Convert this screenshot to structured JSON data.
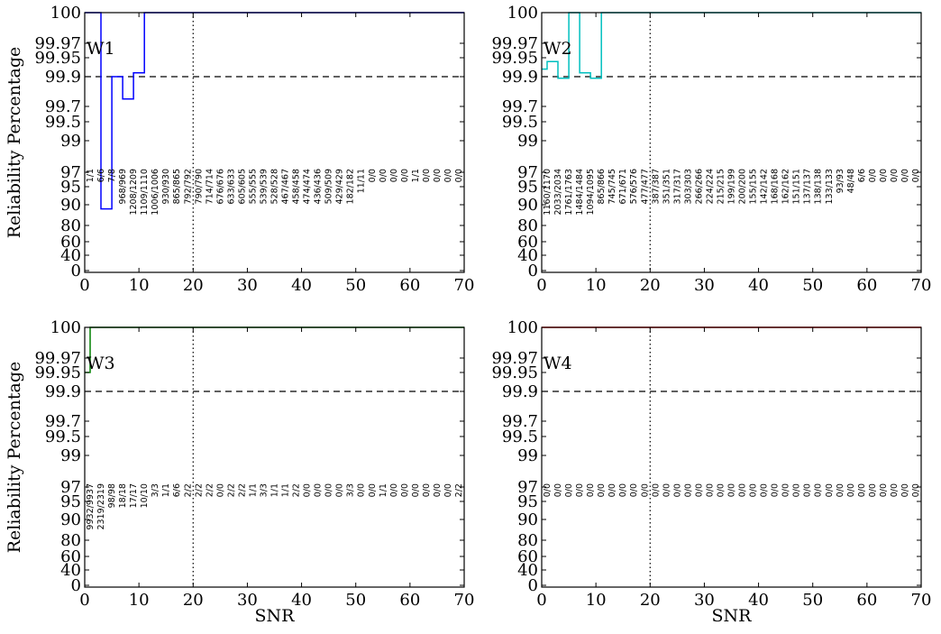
{
  "chart_data": {
    "type": "line",
    "ylabel": "Reliability Percentage",
    "xlabel": "SNR",
    "xlim": [
      0,
      70
    ],
    "x_ticks": [
      "0",
      "10",
      "20",
      "30",
      "40",
      "50",
      "60",
      "70"
    ],
    "y_ticks": [
      "0",
      "40",
      "60",
      "80",
      "90",
      "95",
      "97",
      "99",
      "99.5",
      "99.7",
      "99.9",
      "99.95",
      "99.97",
      "100"
    ],
    "reference_line_y": 99.9,
    "reference_line_x": 20,
    "panels": [
      {
        "name": "W1",
        "color": "#0000ff",
        "series": [
          {
            "x0": 0,
            "x1": 3,
            "y": 100
          },
          {
            "x0": 3,
            "x1": 5,
            "y": 88
          },
          {
            "x0": 5,
            "x1": 7,
            "y": 99.9
          },
          {
            "x0": 7,
            "x1": 9,
            "y": 99.75
          },
          {
            "x0": 9,
            "x1": 11,
            "y": 99.91
          },
          {
            "x0": 11,
            "x1": 70,
            "y": 100
          }
        ],
        "counts": [
          "1/1",
          "6/6",
          "7/8",
          "968/969",
          "1208/1209",
          "1109/1110",
          "1006/1006",
          "930/930",
          "865/865",
          "792/792",
          "790/790",
          "714/714",
          "676/676",
          "633/633",
          "605/605",
          "555/555",
          "539/539",
          "528/528",
          "467/467",
          "458/458",
          "474/474",
          "436/436",
          "509/509",
          "429/429",
          "182/182",
          "11/11",
          "0/0",
          "0/0",
          "0/0",
          "0/0",
          "1/1",
          "0/0",
          "0/0",
          "0/0",
          "0/0"
        ]
      },
      {
        "name": "W2",
        "color": "#00bfbf",
        "series": [
          {
            "x0": 0,
            "x1": 1,
            "y": 99.92
          },
          {
            "x0": 1,
            "x1": 3,
            "y": 99.94
          },
          {
            "x0": 3,
            "x1": 5,
            "y": 99.89
          },
          {
            "x0": 5,
            "x1": 7,
            "y": 100
          },
          {
            "x0": 7,
            "x1": 9,
            "y": 99.91
          },
          {
            "x0": 9,
            "x1": 11,
            "y": 99.89
          },
          {
            "x0": 11,
            "x1": 70,
            "y": 100
          }
        ],
        "counts": [
          "1160/1170",
          "2033/2034",
          "1761/1763",
          "1484/1484",
          "1094/1095",
          "865/866",
          "745/745",
          "671/671",
          "576/576",
          "477/477",
          "387/387",
          "351/351",
          "317/317",
          "303/303",
          "266/266",
          "224/224",
          "215/215",
          "199/199",
          "200/200",
          "155/155",
          "142/142",
          "168/168",
          "162/162",
          "151/151",
          "137/137",
          "138/138",
          "133/133",
          "93/93",
          "48/48",
          "6/6",
          "0/0",
          "0/0",
          "0/0",
          "0/0",
          "0/0"
        ]
      },
      {
        "name": "W3",
        "color": "#008000",
        "series": [
          {
            "x0": 0,
            "x1": 1,
            "y": 99.95
          },
          {
            "x0": 1,
            "x1": 70,
            "y": 100
          }
        ],
        "counts": [
          "9932/9937",
          "2319/2319",
          "98/98",
          "18/18",
          "17/17",
          "10/10",
          "3/3",
          "1/1",
          "6/6",
          "2/2",
          "2/2",
          "2/2",
          "0/0",
          "2/2",
          "2/2",
          "1/1",
          "3/3",
          "1/1",
          "1/1",
          "2/2",
          "0/0",
          "0/0",
          "0/0",
          "0/0",
          "3/3",
          "0/0",
          "0/0",
          "1/1",
          "0/0",
          "0/0",
          "0/0",
          "0/0",
          "0/0",
          "0/0",
          "2/2"
        ]
      },
      {
        "name": "W4",
        "color": "#ff0000",
        "series": [
          {
            "x0": 0,
            "x1": 70,
            "y": 100
          }
        ],
        "counts": [
          "0/0",
          "0/0",
          "0/0",
          "0/0",
          "0/0",
          "0/0",
          "0/0",
          "0/0",
          "0/0",
          "0/0",
          "0/0",
          "0/0",
          "0/0",
          "0/0",
          "0/0",
          "0/0",
          "0/0",
          "0/0",
          "0/0",
          "0/0",
          "0/0",
          "0/0",
          "0/0",
          "0/0",
          "0/0",
          "0/0",
          "0/0",
          "0/0",
          "0/0",
          "0/0",
          "0/0",
          "0/0",
          "0/0",
          "0/0",
          "0/0"
        ]
      }
    ]
  }
}
